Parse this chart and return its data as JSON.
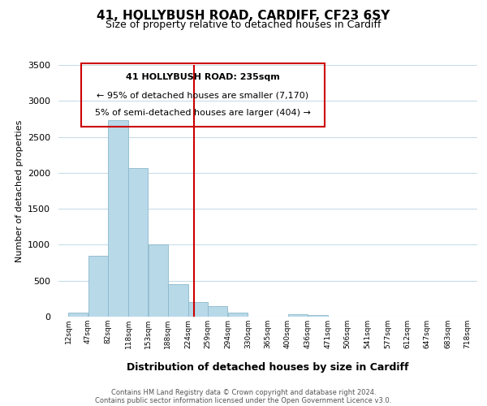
{
  "title": "41, HOLLYBUSH ROAD, CARDIFF, CF23 6SY",
  "subtitle": "Size of property relative to detached houses in Cardiff",
  "xlabel": "Distribution of detached houses by size in Cardiff",
  "ylabel": "Number of detached properties",
  "footnote1": "Contains HM Land Registry data © Crown copyright and database right 2024.",
  "footnote2": "Contains public sector information licensed under the Open Government Licence v3.0.",
  "bar_edges": [
    12,
    47,
    82,
    118,
    153,
    188,
    224,
    259,
    294,
    330,
    365,
    400,
    436,
    471,
    506,
    541,
    577,
    612,
    647,
    683,
    718
  ],
  "bar_heights": [
    55,
    850,
    2730,
    2070,
    1010,
    455,
    205,
    145,
    55,
    0,
    0,
    30,
    20,
    0,
    0,
    0,
    0,
    0,
    0,
    0
  ],
  "bar_color": "#b8d9e8",
  "bar_edgecolor": "#8ab8cc",
  "vline_x": 235,
  "vline_color": "#cc0000",
  "ylim": [
    0,
    3500
  ],
  "yticks": [
    0,
    500,
    1000,
    1500,
    2000,
    2500,
    3000,
    3500
  ],
  "annotation_title": "41 HOLLYBUSH ROAD: 235sqm",
  "annotation_line1": "← 95% of detached houses are smaller (7,170)",
  "annotation_line2": "5% of semi-detached houses are larger (404) →",
  "tick_labels": [
    "12sqm",
    "47sqm",
    "82sqm",
    "118sqm",
    "153sqm",
    "188sqm",
    "224sqm",
    "259sqm",
    "294sqm",
    "330sqm",
    "365sqm",
    "400sqm",
    "436sqm",
    "471sqm",
    "506sqm",
    "541sqm",
    "577sqm",
    "612sqm",
    "647sqm",
    "683sqm",
    "718sqm"
  ],
  "background_color": "#ffffff",
  "grid_color": "#c8dce8"
}
